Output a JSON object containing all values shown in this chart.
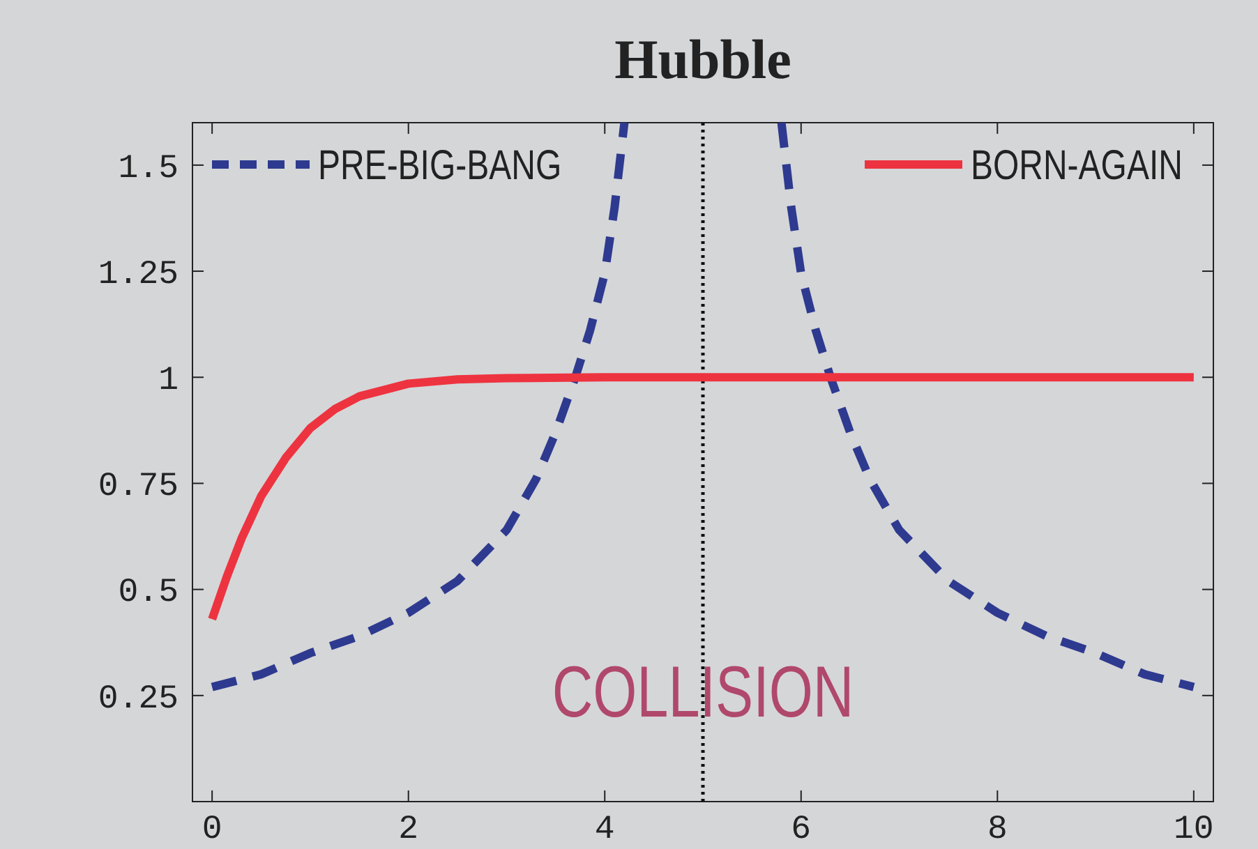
{
  "chart_data": {
    "type": "line",
    "title": "Hubble",
    "xlim": [
      -0.2,
      10.2
    ],
    "xticks": [
      0,
      2,
      4,
      6,
      8,
      10
    ],
    "ylim": [
      0,
      1.6
    ],
    "yticks": [
      0.25,
      0.5,
      0.75,
      1,
      1.25,
      1.5
    ],
    "legend": "top",
    "grid": false,
    "series": [
      {
        "name": "PRE-BIG-BANG",
        "color": "#2e3a8f",
        "line_style": "dashed",
        "x": [
          0,
          0.5,
          1,
          1.5,
          2,
          2.5,
          3,
          3.3,
          3.5,
          3.7,
          3.85,
          4,
          4.1,
          4.2
        ],
        "values": [
          0.27,
          0.3,
          0.35,
          0.39,
          0.445,
          0.52,
          0.64,
          0.76,
          0.87,
          1.0,
          1.11,
          1.245,
          1.4,
          1.6
        ]
      },
      {
        "color": "#2e3a8f",
        "line_style": "dashed",
        "x": [
          5.8,
          5.9,
          6,
          6.15,
          6.3,
          6.5,
          6.7,
          7,
          7.5,
          8,
          8.5,
          9,
          9.5,
          10
        ],
        "values": [
          1.6,
          1.4,
          1.245,
          1.11,
          1.0,
          0.87,
          0.76,
          0.64,
          0.52,
          0.445,
          0.39,
          0.35,
          0.3,
          0.27
        ]
      },
      {
        "name": "BORN-AGAIN",
        "color": "#ee3340",
        "line_style": "solid",
        "x": [
          0,
          0.15,
          0.3,
          0.5,
          0.75,
          1,
          1.25,
          1.5,
          2,
          2.5,
          3,
          4,
          5,
          6,
          7,
          8,
          9,
          10
        ],
        "values": [
          0.43,
          0.53,
          0.62,
          0.72,
          0.81,
          0.88,
          0.925,
          0.955,
          0.985,
          0.995,
          0.998,
          1,
          1,
          1,
          1,
          1,
          1,
          1
        ]
      }
    ],
    "ref_lines": [
      {
        "axis": "x",
        "value": 5,
        "line_style": "dotted",
        "color": "#111111"
      }
    ],
    "annotations": [
      {
        "text": "COLLISION",
        "x": 5,
        "y": 0.2
      }
    ]
  }
}
